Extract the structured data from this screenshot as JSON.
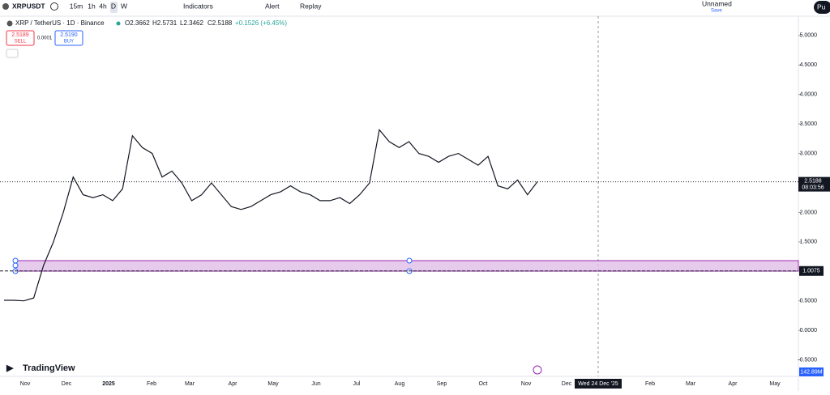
{
  "toolbar": {
    "symbol": "XRPUSDT",
    "intervals": [
      "15m",
      "1h",
      "4h",
      "D",
      "W"
    ],
    "indicators": "Indicators",
    "alert": "Alert",
    "replay": "Replay",
    "layout_name": "Unnamed",
    "layout_state": "Save",
    "publish": "Pu"
  },
  "legend": {
    "title": "XRP / TetherUS · 1D · Binance",
    "open": "O2.3662",
    "high": "H2.5731",
    "low": "L2.3462",
    "close": "C2.5188",
    "change": "+0.1526 (+6.45%)"
  },
  "order": {
    "sell_price": "2.5189",
    "sell": "SELL",
    "spread": "0.0001",
    "buy_price": "2.5190",
    "buy": "BUY"
  },
  "logo": "TradingView",
  "chart_data": {
    "type": "line",
    "color": "#131722",
    "values": [
      0.51,
      0.51,
      0.5,
      0.55,
      1.1,
      1.5,
      2.0,
      2.6,
      2.3,
      2.25,
      2.3,
      2.2,
      2.4,
      3.3,
      3.1,
      3.0,
      2.6,
      2.7,
      2.5,
      2.2,
      2.3,
      2.5,
      2.3,
      2.1,
      2.05,
      2.1,
      2.2,
      2.3,
      2.35,
      2.45,
      2.35,
      2.3,
      2.2,
      2.2,
      2.25,
      2.15,
      2.3,
      2.5,
      3.4,
      3.2,
      3.1,
      3.2,
      3.0,
      2.95,
      2.85,
      2.95,
      3.0,
      2.9,
      2.8,
      2.95,
      2.45,
      2.4,
      2.55,
      2.3,
      2.52
    ],
    "ylim": [
      -0.78,
      5.19
    ],
    "yticks": [
      {
        "value": 5,
        "label": "5.0000"
      },
      {
        "value": 4.5,
        "label": "4.5000"
      },
      {
        "value": 4,
        "label": "4.0000"
      },
      {
        "value": 3.5,
        "label": "3.5000"
      },
      {
        "value": 3,
        "label": "3.0000"
      },
      {
        "value": 2,
        "label": "2.0000"
      },
      {
        "value": 1.5,
        "label": "1.5000"
      },
      {
        "value": 0.5,
        "label": "0.5000"
      },
      {
        "value": 0,
        "label": "0.0000"
      },
      {
        "value": -0.5,
        "label": "-0.5000"
      }
    ],
    "time_labels": [
      "Nov",
      "Dec",
      "2025",
      "Feb",
      "Mar",
      "Apr",
      "May",
      "Jun",
      "Jul",
      "Aug",
      "Sep",
      "Oct",
      "Nov",
      "Dec",
      "Wed 24 Dec '25",
      "Feb",
      "Mar",
      "Apr",
      "May"
    ],
    "last_price": 2.5188,
    "countdown": "08:03:56",
    "level_price": 1.0075,
    "volume_label": "142.89M"
  }
}
